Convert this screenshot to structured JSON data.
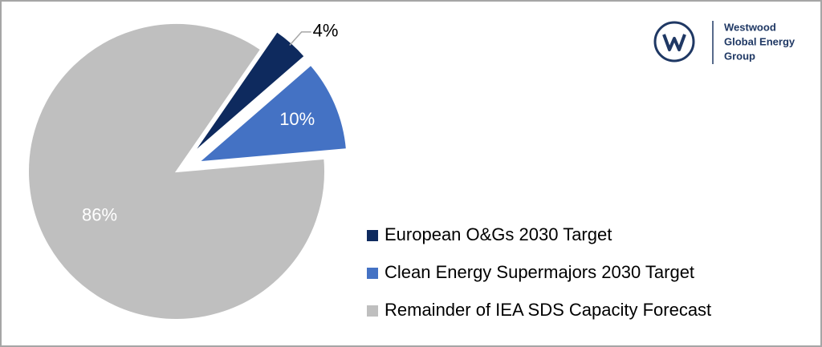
{
  "chart_data": {
    "type": "pie",
    "series": [
      {
        "name": "European O&Gs 2030 Target",
        "color": "#0e2a5e"
      },
      {
        "name": "Clean Energy Supermajors 2030 Target",
        "color": "#4472c4"
      },
      {
        "name": "Remainder of IEA SDS Capacity Forecast",
        "color": "#bfbfbf"
      }
    ],
    "values": [
      4,
      10,
      86
    ],
    "value_labels": [
      "4%",
      "10%",
      "86%"
    ],
    "legend": "bottom-right"
  },
  "logo": {
    "lines": [
      "Westwood",
      "Global Energy",
      "Group"
    ]
  }
}
